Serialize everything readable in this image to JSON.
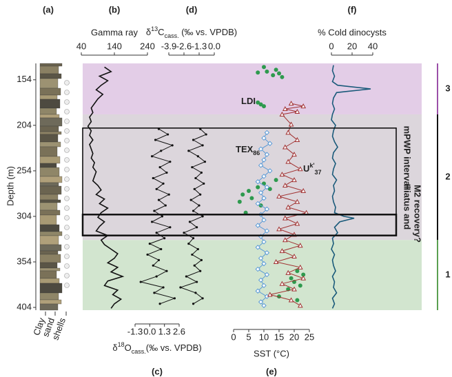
{
  "depth_axis": {
    "label": "Depth (m)",
    "ylim": [
      136,
      407
    ],
    "yticks": [
      154,
      204,
      254,
      304,
      354,
      404
    ]
  },
  "lithology": {
    "panel": "(a)",
    "labels": [
      "Clay",
      "sand",
      "shells"
    ]
  },
  "zones": [
    {
      "label": "3",
      "from": 136,
      "to": 192,
      "color": "#9b4fa8",
      "fill": "#e3cde7"
    },
    {
      "label": "2",
      "from": 192,
      "to": 330,
      "color": "#111111",
      "fill": "#dcd6dc"
    },
    {
      "label": "1",
      "from": 330,
      "to": 407,
      "color": "#5aa050",
      "fill": "#d2e5cf"
    }
  ],
  "intervals": [
    {
      "label": [
        "mPWP interval"
      ],
      "from": 207,
      "to": 325
    },
    {
      "label": [
        "Hiatus and",
        "M2 recovery?"
      ],
      "from": 302,
      "to": 325
    }
  ],
  "chart_data": [
    {
      "type": "line",
      "panel": "(b)",
      "xlabel": "Gamma ray",
      "xlim": [
        40,
        240
      ],
      "xticks": [
        40,
        140,
        240
      ],
      "series": [
        {
          "name": null,
          "color": "#111111",
          "depth": [
            140,
            145,
            150,
            155,
            160,
            165,
            170,
            175,
            180,
            185,
            190,
            195,
            200,
            205,
            210,
            215,
            220,
            225,
            230,
            235,
            240,
            245,
            250,
            255,
            260,
            265,
            270,
            275,
            280,
            285,
            290,
            295,
            300,
            305,
            310,
            315,
            320,
            325,
            330,
            335,
            340,
            345,
            350,
            355,
            360,
            365,
            370,
            375,
            380,
            385,
            390,
            395,
            400,
            405
          ],
          "values": [
            110,
            130,
            95,
            120,
            100,
            85,
            105,
            90,
            80,
            70,
            75,
            65,
            70,
            60,
            70,
            65,
            75,
            65,
            70,
            75,
            70,
            80,
            75,
            85,
            80,
            75,
            90,
            100,
            85,
            110,
            95,
            120,
            100,
            90,
            110,
            95,
            85,
            120,
            100,
            110,
            130,
            150,
            140,
            120,
            150,
            130,
            165,
            120,
            110,
            150,
            135,
            160,
            140,
            130
          ]
        }
      ]
    },
    {
      "type": "line-dots",
      "panel": "(d)",
      "xlabel": {
        "pre": "δ",
        "sup": "13",
        "main": "C",
        "sub": "cass.",
        "post": " (‰ vs. VPDB)"
      },
      "xlim": [
        -3.9,
        0.0
      ],
      "xticks": [
        -3.9,
        -2.6,
        -1.3,
        {
          "value": 0,
          "label": "0.0"
        }
      ],
      "series": [
        {
          "name": null,
          "color": "#111111",
          "depth": [
            208,
            214,
            220,
            226,
            232,
            238,
            244,
            250,
            256,
            262,
            268,
            274,
            280,
            286,
            292,
            298,
            304,
            310,
            316,
            322,
            328,
            334,
            340,
            346,
            352,
            358,
            364,
            370,
            376,
            382,
            388,
            394,
            400
          ],
          "values": [
            -1.2,
            -0.7,
            -1.8,
            -1.0,
            -2.2,
            -1.4,
            -0.8,
            -1.9,
            -1.1,
            -1.6,
            -0.9,
            -1.7,
            -1.2,
            -2.0,
            -1.3,
            -1.8,
            -1.0,
            -2.1,
            -1.5,
            -2.6,
            -1.8,
            -2.2,
            -1.4,
            -1.9,
            -1.1,
            -1.7,
            -1.2,
            -2.4,
            -1.5,
            -2.9,
            -1.6,
            -1.0,
            -1.8
          ]
        }
      ]
    },
    {
      "type": "line-dots",
      "panel": "(c)",
      "xlabel": {
        "pre": "δ",
        "sup": "18",
        "main": "O",
        "sub": "cass.",
        "post": "(‰ vs. VPDB)"
      },
      "xlim": [
        -1.3,
        2.6
      ],
      "xticks": [
        -1.3,
        {
          "value": 0,
          "label": "0.0"
        },
        1.3,
        2.6
      ],
      "series": [
        {
          "name": null,
          "color": "#111111",
          "depth": [
            208,
            214,
            220,
            226,
            232,
            238,
            244,
            250,
            256,
            262,
            268,
            274,
            280,
            286,
            292,
            298,
            304,
            310,
            316,
            322,
            328,
            334,
            340,
            346,
            352,
            358,
            364,
            370,
            376,
            382,
            388,
            394,
            400
          ],
          "values": [
            0.8,
            1.6,
            0.5,
            2.0,
            1.0,
            0.2,
            1.8,
            0.9,
            1.5,
            0.3,
            1.2,
            0.6,
            1.7,
            0.8,
            1.4,
            0.4,
            1.1,
            0.2,
            1.8,
            0.6,
            1.3,
            0.0,
            1.0,
            -0.2,
            0.8,
            0.3,
            1.5,
            0.6,
            -0.8,
            1.2,
            0.4,
            2.2,
            0.9
          ]
        }
      ]
    },
    {
      "type": "multi",
      "panel": "(e)",
      "xlabel": "SST (°C)",
      "xlim": [
        0,
        25
      ],
      "xticks": [
        0,
        5,
        10,
        15,
        20,
        25
      ],
      "series": [
        {
          "name": {
            "main": "LDI"
          },
          "kind": "scatter",
          "color": "#2e9a4e",
          "depth": [
            140,
            143,
            145,
            147,
            149,
            151,
            146,
            179,
            181,
            183,
            264,
            268,
            272,
            276,
            280,
            284,
            288,
            292,
            274,
            300,
            364,
            368,
            372,
            376,
            380,
            384,
            392,
            396
          ],
          "values": [
            10,
            14,
            11,
            15,
            13,
            16,
            8,
            8,
            9,
            10,
            14,
            10,
            8,
            5,
            3,
            6,
            2,
            9,
            12,
            4,
            21,
            23,
            19,
            20,
            22,
            18,
            15,
            21
          ]
        },
        {
          "name": {
            "main": "TEX",
            "sub": "86"
          },
          "kind": "diamond",
          "color": "#5a9ad6",
          "depth": [
            212,
            218,
            224,
            230,
            236,
            242,
            248,
            254,
            260,
            266,
            272,
            278,
            284,
            290,
            296,
            302,
            308,
            314,
            320,
            326,
            332,
            338,
            344,
            350,
            356,
            362,
            368,
            374,
            380,
            386,
            392,
            398,
            402
          ],
          "values": [
            11,
            10,
            12,
            9,
            11,
            10,
            9,
            12,
            10,
            8,
            11,
            9,
            10,
            8,
            11,
            9,
            10,
            8,
            11,
            9,
            10,
            8,
            11,
            9,
            10,
            8,
            11,
            9,
            10,
            8,
            11,
            9,
            10
          ]
        },
        {
          "name": {
            "main": "U",
            "sup": "k'",
            "sub": "37"
          },
          "kind": "triangle",
          "color": "#a03030",
          "depth": [
            180,
            183,
            186,
            189,
            192,
            203,
            212,
            220,
            228,
            236,
            244,
            252,
            258,
            264,
            270,
            276,
            282,
            288,
            294,
            300,
            306,
            312,
            318,
            324,
            330,
            336,
            342,
            348,
            354,
            360,
            366,
            372,
            378,
            384,
            390,
            396,
            402
          ],
          "values": [
            19,
            23,
            17,
            21,
            16,
            19,
            18,
            21,
            17,
            20,
            18,
            22,
            16,
            20,
            17,
            23,
            15,
            21,
            18,
            24,
            17,
            21,
            15,
            20,
            17,
            22,
            16,
            20,
            14,
            22,
            18,
            23,
            16,
            20,
            12,
            19,
            22
          ]
        }
      ]
    },
    {
      "type": "line",
      "panel": "(f)",
      "xlabel": "% Cold dinocysts",
      "xlim": [
        0,
        40
      ],
      "xticks": [
        0,
        20,
        40
      ],
      "series": [
        {
          "name": null,
          "color": "#1a5a7a",
          "depth": [
            138,
            144,
            150,
            156,
            160,
            164,
            168,
            174,
            180,
            186,
            192,
            198,
            204,
            210,
            216,
            222,
            228,
            234,
            240,
            246,
            252,
            258,
            264,
            270,
            276,
            282,
            288,
            294,
            300,
            304,
            306,
            310,
            316,
            322,
            328,
            334,
            340,
            346,
            352,
            358,
            364,
            370,
            376,
            382,
            388,
            394,
            400,
            405
          ],
          "values": [
            2,
            1,
            3,
            1,
            6,
            38,
            5,
            2,
            1,
            3,
            1,
            0,
            4,
            2,
            1,
            3,
            6,
            2,
            1,
            4,
            2,
            1,
            5,
            2,
            3,
            1,
            2,
            4,
            3,
            12,
            22,
            8,
            3,
            6,
            1,
            2,
            0,
            3,
            1,
            2,
            4,
            1,
            3,
            2,
            5,
            1,
            3,
            1
          ]
        }
      ]
    }
  ]
}
